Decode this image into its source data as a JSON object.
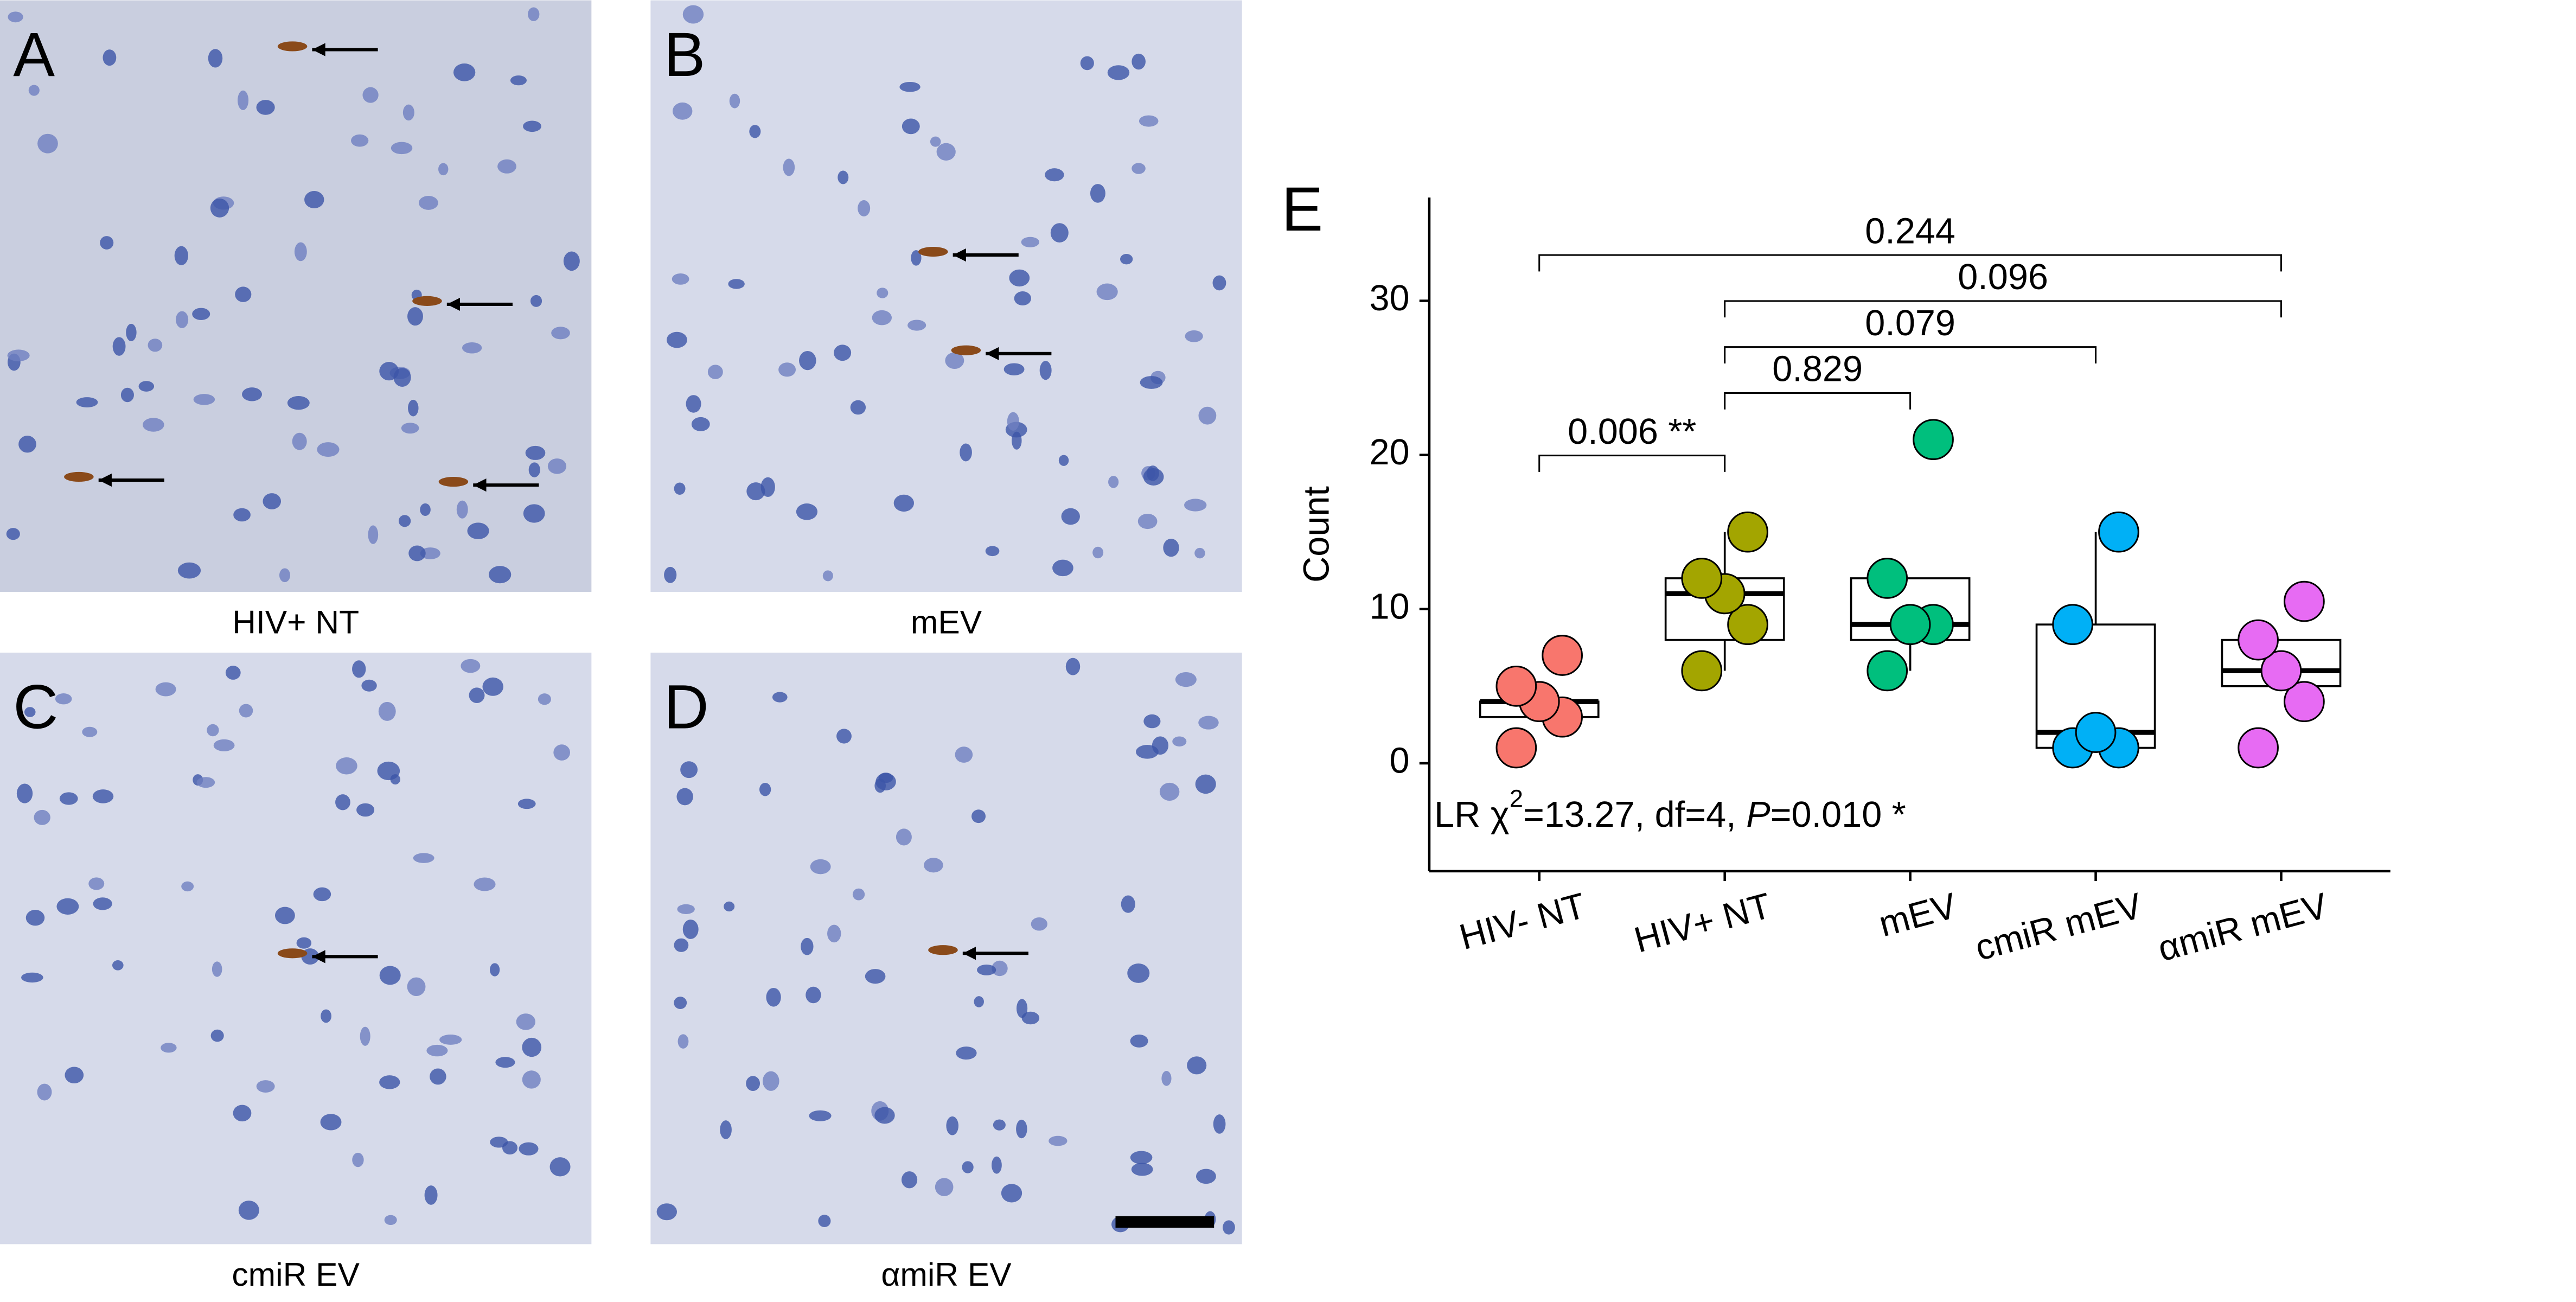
{
  "panels": [
    {
      "letter": "A",
      "caption": "HIV+ NT"
    },
    {
      "letter": "B",
      "caption": "mEV"
    },
    {
      "letter": "C",
      "caption": "cmiR EV"
    },
    {
      "letter": "D",
      "caption": "αmiR EV"
    }
  ],
  "chart_data": {
    "type": "box",
    "letter": "E",
    "ylabel": "Count",
    "categories": [
      "HIV- NT",
      "HIV+ NT",
      "mEV",
      "cmiR mEV",
      "αmiR mEV"
    ],
    "colors": [
      "#f8766d",
      "#a3a500",
      "#00bf7d",
      "#00b0f6",
      "#e76bf3"
    ],
    "boxes": [
      {
        "low": 3,
        "q1": 3,
        "median": 4,
        "q3": 4,
        "high": 4,
        "points": [
          1,
          3,
          4,
          5,
          7
        ]
      },
      {
        "low": 6,
        "q1": 8,
        "median": 11,
        "q3": 12,
        "high": 15,
        "points": [
          6,
          9,
          11,
          12,
          15
        ]
      },
      {
        "low": 6,
        "q1": 8,
        "median": 9,
        "q3": 12,
        "high": 12,
        "points": [
          6,
          9,
          9,
          12,
          21
        ]
      },
      {
        "low": 1,
        "q1": 1,
        "median": 2,
        "q3": 9,
        "high": 15,
        "points": [
          1,
          1,
          2,
          9,
          15
        ]
      },
      {
        "low": 5,
        "q1": 5,
        "median": 6,
        "q3": 8,
        "high": 8,
        "points": [
          1,
          4,
          6,
          8,
          10.5
        ]
      }
    ],
    "brackets": [
      {
        "groups": [
          "HIV- NT",
          "αmiR mEV"
        ],
        "label": "0.244"
      },
      {
        "groups": [
          "HIV+ NT",
          "αmiR mEV"
        ],
        "label": "0.096"
      },
      {
        "groups": [
          "HIV+ NT",
          "cmiR mEV"
        ],
        "label": "0.079"
      },
      {
        "groups": [
          "HIV+ NT",
          "mEV"
        ],
        "label": "0.829"
      },
      {
        "groups": [
          "HIV- NT",
          "HIV+ NT"
        ],
        "label": "0.006 **"
      }
    ],
    "annotation": [
      "LR ",
      "χ",
      "2",
      "=13.27, df=4, ",
      "P",
      "=0.010 *"
    ],
    "ylim": [
      -7,
      36.7
    ],
    "yticks": [
      0,
      10,
      20,
      30
    ]
  }
}
